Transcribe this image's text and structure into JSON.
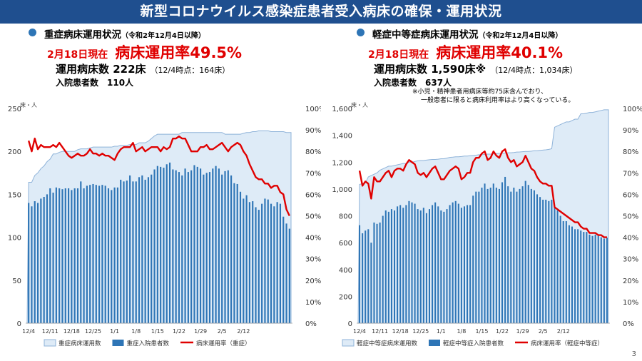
{
  "page_title": "新型コロナウイルス感染症患者受入病床の確保・運用状況",
  "page_number": "3",
  "severe": {
    "heading": "重症病床運用状況",
    "heading_sub": "（令和2年12月4日以降）",
    "as_of": "2月18日現在",
    "rate_text": "病床運用率49.5%",
    "beds_text": "運用病床数 222床",
    "beds_prev": "（12/4時点：164床）",
    "patients_text": "入院患者数　110人"
  },
  "mild": {
    "heading": "軽症中等症病床運用状況",
    "heading_sub": "（令和2年12月4日以降）",
    "as_of": "2月18日現在",
    "rate_text": "病床運用率40.1%",
    "beds_text": "運用病床数 1,590床※",
    "beds_prev": "（12/4時点：1,034床）",
    "patients_text": "入院患者数　637人",
    "note_line1": "※小児・精神患者用病床等約75床含んでおり、",
    "note_line2": "一般患者に限ると病床利用率はより高くなっている。"
  },
  "colors": {
    "banner": "#1f4f8f",
    "area_fill": "#deebf7",
    "area_stroke": "#8fb3d9",
    "bar": "#2e75b6",
    "line": "#e00000",
    "dot": "#2e75b6"
  },
  "chart_data": [
    {
      "type": "bar",
      "unit_label": "床・人",
      "x_ticks": [
        "12/4",
        "12/11",
        "12/18",
        "12/25",
        "1/1",
        "1/8",
        "1/15",
        "1/22",
        "1/29",
        "2/5",
        "2/12"
      ],
      "ylim": [
        0,
        250
      ],
      "y_ticks": [
        0,
        50,
        100,
        150,
        200,
        250
      ],
      "y2lim": [
        0,
        100
      ],
      "y2_ticks": [
        "0%",
        "10%",
        "20%",
        "30%",
        "40%",
        "50%",
        "60%",
        "70%",
        "80%",
        "90%",
        "100%"
      ],
      "grid": false,
      "legend_position": "bottom",
      "series": [
        {
          "name": "重症病床運用数",
          "kind": "area",
          "values": [
            164,
            164,
            172,
            175,
            180,
            183,
            188,
            191,
            197,
            197,
            199,
            200,
            200,
            200,
            200,
            200,
            202,
            203,
            203,
            203,
            204,
            205,
            205,
            205,
            205,
            205,
            205,
            205,
            206,
            206,
            207,
            207,
            207,
            208,
            208,
            208,
            210,
            210,
            210,
            212,
            215,
            218,
            220,
            220,
            220,
            220,
            220,
            220,
            220,
            220,
            222,
            222,
            222,
            222,
            222,
            222,
            222,
            222,
            222,
            222,
            222,
            222,
            222,
            222,
            220,
            220,
            220,
            220,
            220,
            220,
            221,
            222,
            222,
            223,
            223,
            224,
            224,
            224,
            224,
            223,
            223,
            223,
            223,
            223,
            222,
            222
          ]
        },
        {
          "name": "重症入院患者数",
          "kind": "bar",
          "values": [
            140,
            136,
            142,
            140,
            145,
            147,
            150,
            157,
            152,
            158,
            157,
            156,
            157,
            157,
            155,
            157,
            157,
            165,
            157,
            160,
            161,
            162,
            161,
            160,
            161,
            160,
            157,
            155,
            158,
            158,
            167,
            165,
            166,
            172,
            165,
            165,
            170,
            172,
            167,
            170,
            173,
            179,
            183,
            182,
            181,
            185,
            187,
            179,
            178,
            176,
            172,
            180,
            176,
            178,
            184,
            182,
            180,
            173,
            175,
            176,
            180,
            183,
            180,
            173,
            177,
            178,
            172,
            163,
            162,
            153,
            145,
            149,
            141,
            142,
            135,
            132,
            139,
            145,
            144,
            139,
            136,
            141,
            139,
            124,
            116,
            110
          ]
        },
        {
          "name": "病床運用率（重症）",
          "kind": "line",
          "axis": "right",
          "values": [
            85,
            80,
            86,
            81,
            83,
            82,
            82,
            82,
            83,
            82,
            84,
            82,
            80,
            78,
            77,
            78,
            79,
            78,
            78,
            79,
            81,
            79,
            79,
            78,
            79,
            78,
            78,
            77,
            76,
            79,
            81,
            82,
            82,
            82,
            84,
            80,
            81,
            82,
            80,
            81,
            82,
            82,
            82,
            80,
            82,
            81,
            82,
            86,
            86,
            87,
            86,
            86,
            83,
            80,
            80,
            80,
            82,
            82,
            83,
            81,
            81,
            82,
            83,
            84,
            82,
            80,
            82,
            83,
            84,
            83,
            80,
            78,
            74,
            71,
            68,
            67,
            67,
            65,
            65,
            63,
            64,
            64,
            61,
            60,
            53,
            50
          ]
        }
      ]
    },
    {
      "type": "bar",
      "unit_label": "床・人",
      "x_ticks": [
        "12/4",
        "12/11",
        "12/18",
        "12/25",
        "1/1",
        "1/8",
        "1/15",
        "1/22",
        "1/29",
        "2/5",
        "2/12"
      ],
      "ylim": [
        0,
        1600
      ],
      "y_ticks": [
        "0",
        "200",
        "400",
        "600",
        "800",
        "1,000",
        "1,200",
        "1,400",
        "1,600"
      ],
      "y2lim": [
        0,
        100
      ],
      "y2_ticks": [
        "0%",
        "10%",
        "20%",
        "30%",
        "40%",
        "50%",
        "60%",
        "70%",
        "80%",
        "90%",
        "100%"
      ],
      "grid": false,
      "legend_position": "bottom",
      "series": [
        {
          "name": "軽症中等症病床運用数",
          "kind": "area",
          "values": [
            1034,
            1040,
            1045,
            1090,
            1100,
            1110,
            1120,
            1140,
            1150,
            1160,
            1170,
            1170,
            1175,
            1180,
            1185,
            1190,
            1190,
            1200,
            1200,
            1205,
            1210,
            1212,
            1212,
            1215,
            1218,
            1220,
            1220,
            1222,
            1225,
            1225,
            1230,
            1235,
            1237,
            1240,
            1240,
            1242,
            1245,
            1245,
            1248,
            1250,
            1252,
            1255,
            1256,
            1258,
            1260,
            1260,
            1262,
            1264,
            1265,
            1266,
            1268,
            1270,
            1270,
            1272,
            1275,
            1276,
            1278,
            1280,
            1280,
            1282,
            1285,
            1285,
            1288,
            1290,
            1292,
            1295,
            1300,
            1460,
            1470,
            1480,
            1490,
            1500,
            1500,
            1510,
            1520,
            1520,
            1560,
            1560,
            1565,
            1570,
            1570,
            1575,
            1580,
            1585,
            1590,
            1590
          ]
        },
        {
          "name": "軽症中等症入院患者数",
          "kind": "bar",
          "values": [
            730,
            670,
            690,
            700,
            600,
            750,
            740,
            750,
            800,
            840,
            830,
            850,
            840,
            870,
            880,
            860,
            880,
            910,
            900,
            890,
            850,
            840,
            860,
            820,
            850,
            880,
            900,
            870,
            840,
            830,
            850,
            880,
            900,
            910,
            890,
            860,
            870,
            880,
            880,
            950,
            980,
            980,
            1010,
            1040,
            1000,
            1010,
            1040,
            1010,
            1000,
            1050,
            1090,
            1020,
            980,
            1010,
            980,
            1000,
            1020,
            1060,
            1030,
            1000,
            990,
            960,
            940,
            920,
            920,
            910,
            920,
            870,
            840,
            800,
            760,
            760,
            730,
            720,
            700,
            700,
            690,
            680,
            680,
            660,
            650,
            660,
            650,
            640,
            630,
            637
          ]
        },
        {
          "name": "病床運用率（軽症中等症）",
          "kind": "line",
          "axis": "right",
          "values": [
            71,
            64,
            66,
            65,
            58,
            68,
            66,
            66,
            68,
            70,
            71,
            68,
            71,
            72,
            72,
            71,
            74,
            76,
            75,
            74,
            70,
            69,
            70,
            68,
            70,
            72,
            73,
            70,
            67,
            67,
            69,
            71,
            72,
            73,
            72,
            67,
            68,
            70,
            70,
            75,
            77,
            77,
            79,
            80,
            76,
            77,
            80,
            78,
            77,
            80,
            81,
            77,
            75,
            76,
            73,
            74,
            75,
            78,
            75,
            72,
            71,
            68,
            66,
            65,
            65,
            64,
            64,
            54,
            53,
            52,
            51,
            50,
            49,
            48,
            47,
            47,
            45,
            44,
            44,
            42,
            42,
            42,
            41,
            41,
            40,
            40
          ]
        }
      ]
    }
  ]
}
